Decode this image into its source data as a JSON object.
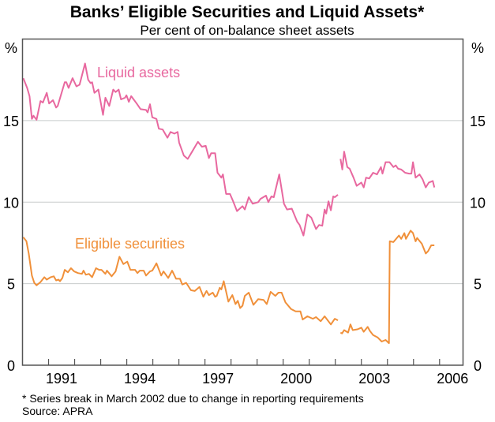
{
  "chart_data": {
    "type": "line",
    "title": "Banks’ Eligible Securities and Liquid Assets*",
    "subtitle": "Per cent of on-balance sheet assets",
    "ylabel_left": "%",
    "ylabel_right": "%",
    "ylim": [
      0,
      20
    ],
    "xlim": [
      1990,
      2006.9
    ],
    "yticks": [
      0,
      5,
      10,
      15
    ],
    "xticks": [
      "1991",
      "1994",
      "1997",
      "2000",
      "2003",
      "2006"
    ],
    "grid": true,
    "footnote": "* Series break in March 2002 due to change in reporting requirements",
    "source": "Source: APRA",
    "series": [
      {
        "name": "Liquid assets",
        "color": "#e8689f",
        "segments": [
          [
            [
              1990.03,
              17.6
            ],
            [
              1990.18,
              17.0
            ],
            [
              1990.27,
              16.5
            ],
            [
              1990.36,
              15.1
            ],
            [
              1990.42,
              15.3
            ],
            [
              1990.54,
              15.05
            ],
            [
              1990.69,
              16.2
            ],
            [
              1990.78,
              16.1
            ],
            [
              1990.93,
              16.7
            ],
            [
              1991.02,
              16.05
            ],
            [
              1991.17,
              16.25
            ],
            [
              1991.29,
              15.8
            ],
            [
              1991.35,
              15.9
            ],
            [
              1991.62,
              17.35
            ],
            [
              1991.68,
              17.35
            ],
            [
              1991.77,
              17.0
            ],
            [
              1991.92,
              17.6
            ],
            [
              1992.07,
              17.1
            ],
            [
              1992.19,
              17.2
            ],
            [
              1992.4,
              18.5
            ],
            [
              1992.52,
              17.5
            ],
            [
              1992.61,
              17.3
            ],
            [
              1992.67,
              17.35
            ],
            [
              1992.76,
              16.7
            ],
            [
              1992.91,
              16.9
            ],
            [
              1993.09,
              15.35
            ],
            [
              1993.18,
              16.4
            ],
            [
              1993.33,
              15.9
            ],
            [
              1993.48,
              16.9
            ],
            [
              1993.57,
              16.75
            ],
            [
              1993.69,
              16.9
            ],
            [
              1993.78,
              16.3
            ],
            [
              1993.93,
              16.4
            ],
            [
              1993.99,
              16.55
            ],
            [
              1994.08,
              16.15
            ],
            [
              1994.17,
              16.5
            ],
            [
              1994.38,
              16.05
            ],
            [
              1994.53,
              15.7
            ],
            [
              1994.74,
              15.65
            ],
            [
              1994.8,
              15.5
            ],
            [
              1994.89,
              16.0
            ],
            [
              1994.98,
              15.2
            ],
            [
              1995.14,
              15.1
            ],
            [
              1995.23,
              14.5
            ],
            [
              1995.38,
              14.45
            ],
            [
              1995.56,
              13.95
            ],
            [
              1995.68,
              14.3
            ],
            [
              1995.83,
              14.2
            ],
            [
              1995.95,
              14.3
            ],
            [
              1996.01,
              13.65
            ],
            [
              1996.19,
              12.85
            ],
            [
              1996.34,
              12.65
            ],
            [
              1996.49,
              13.05
            ],
            [
              1996.73,
              13.7
            ],
            [
              1996.88,
              13.4
            ],
            [
              1997.03,
              13.45
            ],
            [
              1997.15,
              12.7
            ],
            [
              1997.24,
              13.0
            ],
            [
              1997.39,
              13.0
            ],
            [
              1997.48,
              11.8
            ],
            [
              1997.63,
              11.5
            ],
            [
              1997.69,
              11.7
            ],
            [
              1997.81,
              10.5
            ],
            [
              1997.96,
              10.5
            ],
            [
              1998.08,
              10.05
            ],
            [
              1998.23,
              9.45
            ],
            [
              1998.44,
              9.75
            ],
            [
              1998.53,
              9.55
            ],
            [
              1998.68,
              10.3
            ],
            [
              1998.83,
              9.9
            ],
            [
              1999.04,
              10.0
            ],
            [
              1999.13,
              10.2
            ],
            [
              1999.34,
              10.4
            ],
            [
              1999.43,
              10.0
            ],
            [
              1999.55,
              10.35
            ],
            [
              1999.64,
              10.3
            ],
            [
              1999.85,
              11.7
            ],
            [
              2000.03,
              9.9
            ],
            [
              2000.15,
              9.55
            ],
            [
              2000.33,
              9.6
            ],
            [
              2000.54,
              8.8
            ],
            [
              2000.63,
              8.6
            ],
            [
              2000.78,
              7.95
            ],
            [
              2000.93,
              9.25
            ],
            [
              2001.08,
              9.05
            ],
            [
              2001.26,
              8.35
            ],
            [
              2001.38,
              8.6
            ],
            [
              2001.5,
              8.55
            ],
            [
              2001.59,
              9.55
            ],
            [
              2001.65,
              9.3
            ],
            [
              2001.74,
              10.05
            ],
            [
              2001.83,
              9.5
            ],
            [
              2001.92,
              10.35
            ],
            [
              2001.98,
              10.3
            ],
            [
              2002.1,
              10.45
            ]
          ],
          [
            [
              2002.2,
              12.65
            ],
            [
              2002.27,
              12.0
            ],
            [
              2002.34,
              13.1
            ],
            [
              2002.46,
              12.15
            ],
            [
              2002.55,
              12.05
            ],
            [
              2002.7,
              11.5
            ],
            [
              2002.82,
              11.0
            ],
            [
              2003.0,
              11.2
            ],
            [
              2003.09,
              10.9
            ],
            [
              2003.18,
              11.5
            ],
            [
              2003.3,
              11.45
            ],
            [
              2003.45,
              11.8
            ],
            [
              2003.6,
              11.7
            ],
            [
              2003.75,
              12.15
            ],
            [
              2003.81,
              11.75
            ],
            [
              2003.93,
              12.45
            ],
            [
              2004.08,
              12.45
            ],
            [
              2004.23,
              12.15
            ],
            [
              2004.32,
              12.25
            ],
            [
              2004.41,
              12.05
            ],
            [
              2004.53,
              12.0
            ],
            [
              2004.68,
              11.8
            ],
            [
              2004.83,
              11.75
            ],
            [
              2004.92,
              11.75
            ],
            [
              2004.98,
              12.45
            ],
            [
              2005.08,
              11.5
            ],
            [
              2005.23,
              11.7
            ],
            [
              2005.35,
              11.4
            ],
            [
              2005.47,
              10.9
            ],
            [
              2005.59,
              11.2
            ],
            [
              2005.74,
              11.3
            ],
            [
              2005.8,
              10.9
            ]
          ]
        ]
      },
      {
        "name": "Eligible securities",
        "color": "#f0903a",
        "segments": [
          [
            [
              1990.03,
              7.85
            ],
            [
              1990.15,
              7.6
            ],
            [
              1990.24,
              6.85
            ],
            [
              1990.36,
              5.5
            ],
            [
              1990.45,
              5.05
            ],
            [
              1990.54,
              4.9
            ],
            [
              1990.69,
              5.1
            ],
            [
              1990.84,
              5.4
            ],
            [
              1990.93,
              5.25
            ],
            [
              1991.08,
              5.4
            ],
            [
              1991.2,
              5.45
            ],
            [
              1991.29,
              5.2
            ],
            [
              1991.38,
              5.25
            ],
            [
              1991.44,
              5.15
            ],
            [
              1991.53,
              5.35
            ],
            [
              1991.62,
              5.85
            ],
            [
              1991.74,
              5.7
            ],
            [
              1991.86,
              5.95
            ],
            [
              1991.98,
              5.75
            ],
            [
              1992.13,
              5.65
            ],
            [
              1992.28,
              5.6
            ],
            [
              1992.34,
              5.8
            ],
            [
              1992.43,
              5.55
            ],
            [
              1992.55,
              5.6
            ],
            [
              1992.67,
              5.4
            ],
            [
              1992.82,
              5.95
            ],
            [
              1992.94,
              5.85
            ],
            [
              1993.03,
              5.85
            ],
            [
              1993.18,
              5.6
            ],
            [
              1993.24,
              5.8
            ],
            [
              1993.42,
              5.45
            ],
            [
              1993.57,
              5.75
            ],
            [
              1993.72,
              6.65
            ],
            [
              1993.87,
              6.2
            ],
            [
              1994.02,
              6.35
            ],
            [
              1994.14,
              5.85
            ],
            [
              1994.32,
              5.85
            ],
            [
              1994.41,
              5.65
            ],
            [
              1994.5,
              5.8
            ],
            [
              1994.65,
              5.8
            ],
            [
              1994.74,
              5.5
            ],
            [
              1994.89,
              5.75
            ],
            [
              1994.98,
              5.8
            ],
            [
              1995.14,
              6.25
            ],
            [
              1995.32,
              5.5
            ],
            [
              1995.41,
              5.75
            ],
            [
              1995.59,
              5.35
            ],
            [
              1995.74,
              5.8
            ],
            [
              1995.89,
              5.3
            ],
            [
              1996.04,
              5.3
            ],
            [
              1996.13,
              4.95
            ],
            [
              1996.28,
              5.05
            ],
            [
              1996.46,
              4.6
            ],
            [
              1996.61,
              4.55
            ],
            [
              1996.79,
              4.8
            ],
            [
              1996.94,
              4.2
            ],
            [
              1997.06,
              4.55
            ],
            [
              1997.15,
              4.3
            ],
            [
              1997.3,
              4.45
            ],
            [
              1997.39,
              4.2
            ],
            [
              1997.45,
              4.25
            ],
            [
              1997.57,
              4.75
            ],
            [
              1997.63,
              4.65
            ],
            [
              1997.72,
              5.15
            ],
            [
              1997.9,
              3.9
            ],
            [
              1998.05,
              4.3
            ],
            [
              1998.17,
              3.75
            ],
            [
              1998.26,
              3.95
            ],
            [
              1998.35,
              3.5
            ],
            [
              1998.44,
              3.65
            ],
            [
              1998.53,
              4.25
            ],
            [
              1998.68,
              4.45
            ],
            [
              1998.86,
              3.7
            ],
            [
              1999.04,
              4.05
            ],
            [
              1999.25,
              4.0
            ],
            [
              1999.37,
              3.75
            ],
            [
              1999.52,
              4.5
            ],
            [
              1999.7,
              4.25
            ],
            [
              1999.82,
              4.45
            ],
            [
              1999.94,
              4.45
            ],
            [
              2000.09,
              3.85
            ],
            [
              2000.3,
              3.45
            ],
            [
              2000.48,
              3.3
            ],
            [
              2000.66,
              3.3
            ],
            [
              2000.75,
              2.8
            ],
            [
              2000.93,
              3.0
            ],
            [
              2001.14,
              2.85
            ],
            [
              2001.26,
              2.95
            ],
            [
              2001.44,
              2.7
            ],
            [
              2001.59,
              3.0
            ],
            [
              2001.83,
              2.5
            ],
            [
              2001.98,
              2.85
            ],
            [
              2002.1,
              2.75
            ]
          ],
          [
            [
              2002.2,
              2.0
            ],
            [
              2002.26,
              1.95
            ],
            [
              2002.34,
              2.15
            ],
            [
              2002.49,
              2.0
            ],
            [
              2002.58,
              2.5
            ],
            [
              2002.67,
              2.15
            ],
            [
              2002.85,
              2.2
            ],
            [
              2003.0,
              2.3
            ],
            [
              2003.09,
              2.05
            ],
            [
              2003.24,
              2.35
            ],
            [
              2003.33,
              2.1
            ],
            [
              2003.45,
              1.85
            ],
            [
              2003.63,
              1.7
            ],
            [
              2003.78,
              1.45
            ],
            [
              2003.93,
              1.55
            ],
            [
              2004.06,
              1.35
            ],
            [
              2004.09,
              7.6
            ],
            [
              2004.23,
              7.55
            ],
            [
              2004.44,
              7.95
            ],
            [
              2004.53,
              7.75
            ],
            [
              2004.65,
              8.1
            ],
            [
              2004.71,
              7.75
            ],
            [
              2004.89,
              8.25
            ],
            [
              2004.98,
              8.1
            ],
            [
              2005.08,
              7.6
            ],
            [
              2005.14,
              7.8
            ],
            [
              2005.32,
              7.45
            ],
            [
              2005.47,
              6.85
            ],
            [
              2005.56,
              7.0
            ],
            [
              2005.68,
              7.35
            ],
            [
              2005.8,
              7.35
            ]
          ]
        ]
      }
    ]
  }
}
